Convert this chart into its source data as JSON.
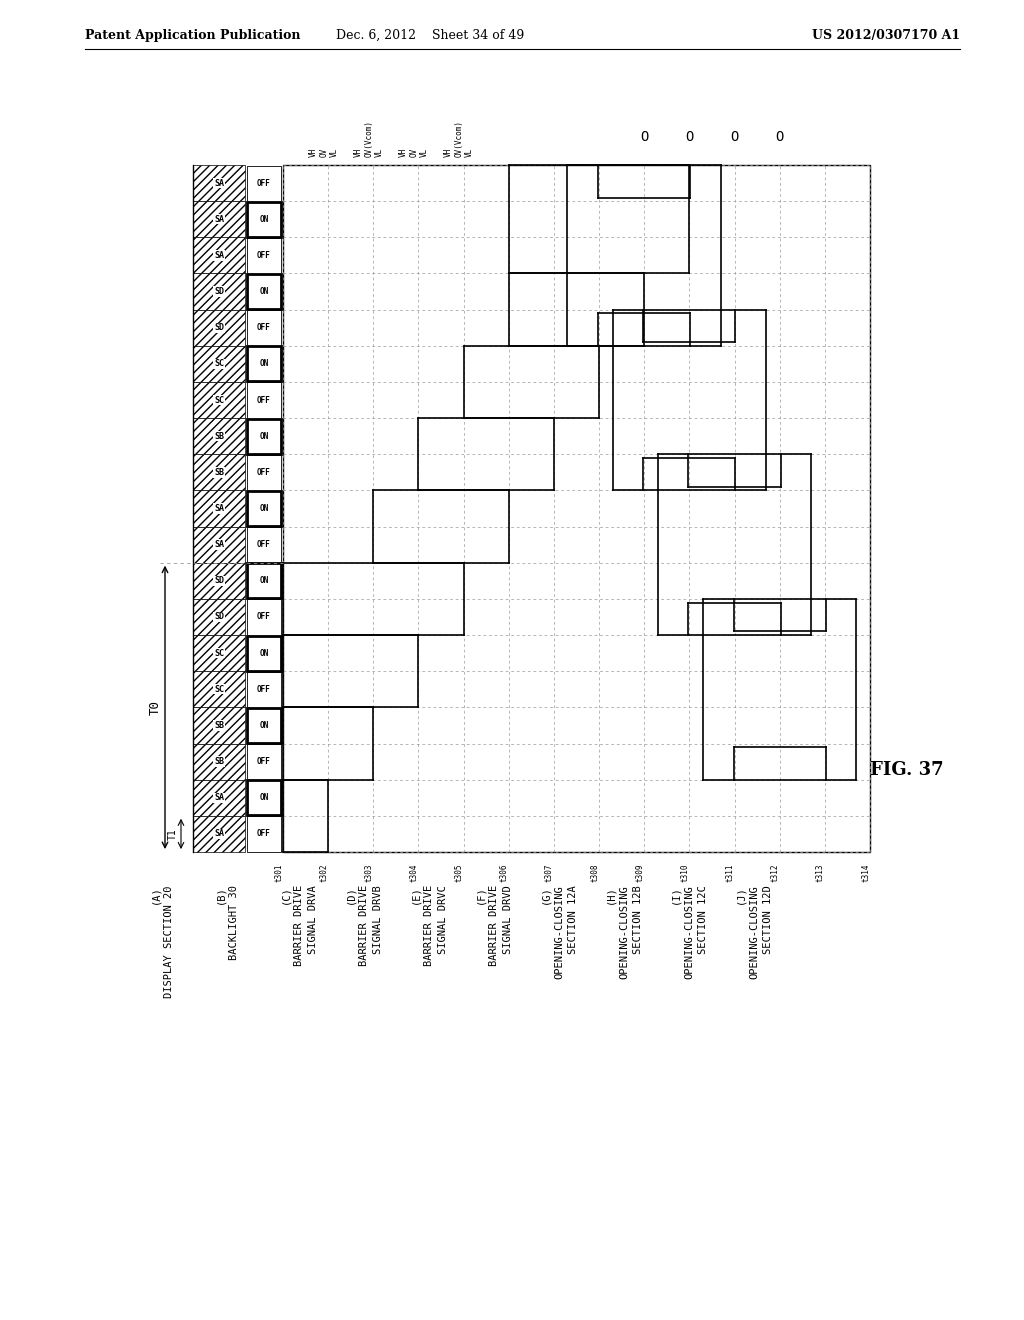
{
  "header_left": "Patent Application Publication",
  "header_center": "Dec. 6, 2012    Sheet 34 of 49",
  "header_right": "US 2012/0307170 A1",
  "figure_label": "FIG. 37",
  "bg_color": "#ffffff",
  "line_color": "#000000",
  "grid_color": "#999999",
  "T0_label": "T0",
  "T1_label": "T1",
  "time_labels": [
    "t301",
    "t302",
    "t303",
    "t304",
    "t305",
    "t306",
    "t307",
    "t308",
    "t309",
    "t310",
    "t311",
    "t312",
    "t313",
    "t314"
  ],
  "row_sa_labels": [
    "SA",
    "SD",
    "SD",
    "SC",
    "SC",
    "SB",
    "SB",
    "SA",
    "SA",
    "SD",
    "SD",
    "SC",
    "SC",
    "SB",
    "SB",
    "SA",
    "SA",
    "SA",
    "SA"
  ],
  "row_onoff": [
    "OFF",
    "ON",
    "OFF",
    "ON",
    "OFF",
    "ON",
    "OFF",
    "ON",
    "OFF",
    "ON",
    "OFF",
    "ON",
    "OFF",
    "ON",
    "OFF",
    "ON",
    "OFF",
    "ON",
    "OFF"
  ],
  "legend_letters": [
    "A",
    "B",
    "C",
    "D",
    "E",
    "F",
    "G",
    "H",
    "I",
    "J"
  ],
  "legend_line1": [
    "DISPLAY SECTION 20",
    "BACKLIGHT 30",
    "BARRIER DRIVE",
    "BARRIER DRIVE",
    "BARRIER DRIVE",
    "BARRIER DRIVE",
    "OPENING-CLOSING",
    "OPENING-CLOSING",
    "OPENING-CLOSING",
    "OPENING-CLOSING"
  ],
  "legend_line2": [
    "",
    "",
    "SIGNAL DRVA",
    "SIGNAL DRVB",
    "SIGNAL DRVC",
    "SIGNAL DRVD",
    "SECTION 12A",
    "SECTION 12B",
    "SECTION 12C",
    "SECTION 12D"
  ]
}
